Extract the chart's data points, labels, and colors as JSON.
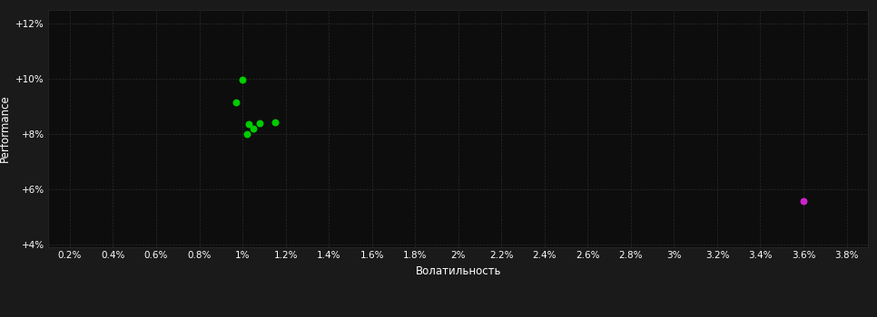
{
  "background_color": "#1a1a1a",
  "plot_bg_color": "#0d0d0d",
  "grid_color": "#2a2a2a",
  "text_color": "#ffffff",
  "xlabel": "Волатильность",
  "ylabel": "Performance",
  "xlim": [
    0.001,
    0.039
  ],
  "ylim": [
    0.039,
    0.125
  ],
  "xtick_vals": [
    0.002,
    0.004,
    0.006,
    0.008,
    0.01,
    0.012,
    0.014,
    0.016,
    0.018,
    0.02,
    0.022,
    0.024,
    0.026,
    0.028,
    0.03,
    0.032,
    0.034,
    0.036,
    0.038
  ],
  "xtick_labels": [
    "0.2%",
    "0.4%",
    "0.6%",
    "0.8%",
    "1%",
    "1.2%",
    "1.4%",
    "1.6%",
    "1.8%",
    "2%",
    "2.2%",
    "2.4%",
    "2.6%",
    "2.8%",
    "3%",
    "3.2%",
    "3.4%",
    "3.6%",
    "3.8%"
  ],
  "ytick_vals": [
    0.04,
    0.06,
    0.08,
    0.1,
    0.12
  ],
  "ytick_labels": [
    "+4%",
    "+6%",
    "+8%",
    "+10%",
    "+12%"
  ],
  "green_points": [
    [
      0.01,
      0.0995
    ],
    [
      0.0097,
      0.0915
    ],
    [
      0.0103,
      0.0835
    ],
    [
      0.0108,
      0.084
    ],
    [
      0.0105,
      0.082
    ],
    [
      0.0102,
      0.08
    ],
    [
      0.0115,
      0.0843
    ]
  ],
  "magenta_points": [
    [
      0.036,
      0.0558
    ]
  ],
  "green_color": "#00cc00",
  "magenta_color": "#cc22cc",
  "marker_size": 22
}
